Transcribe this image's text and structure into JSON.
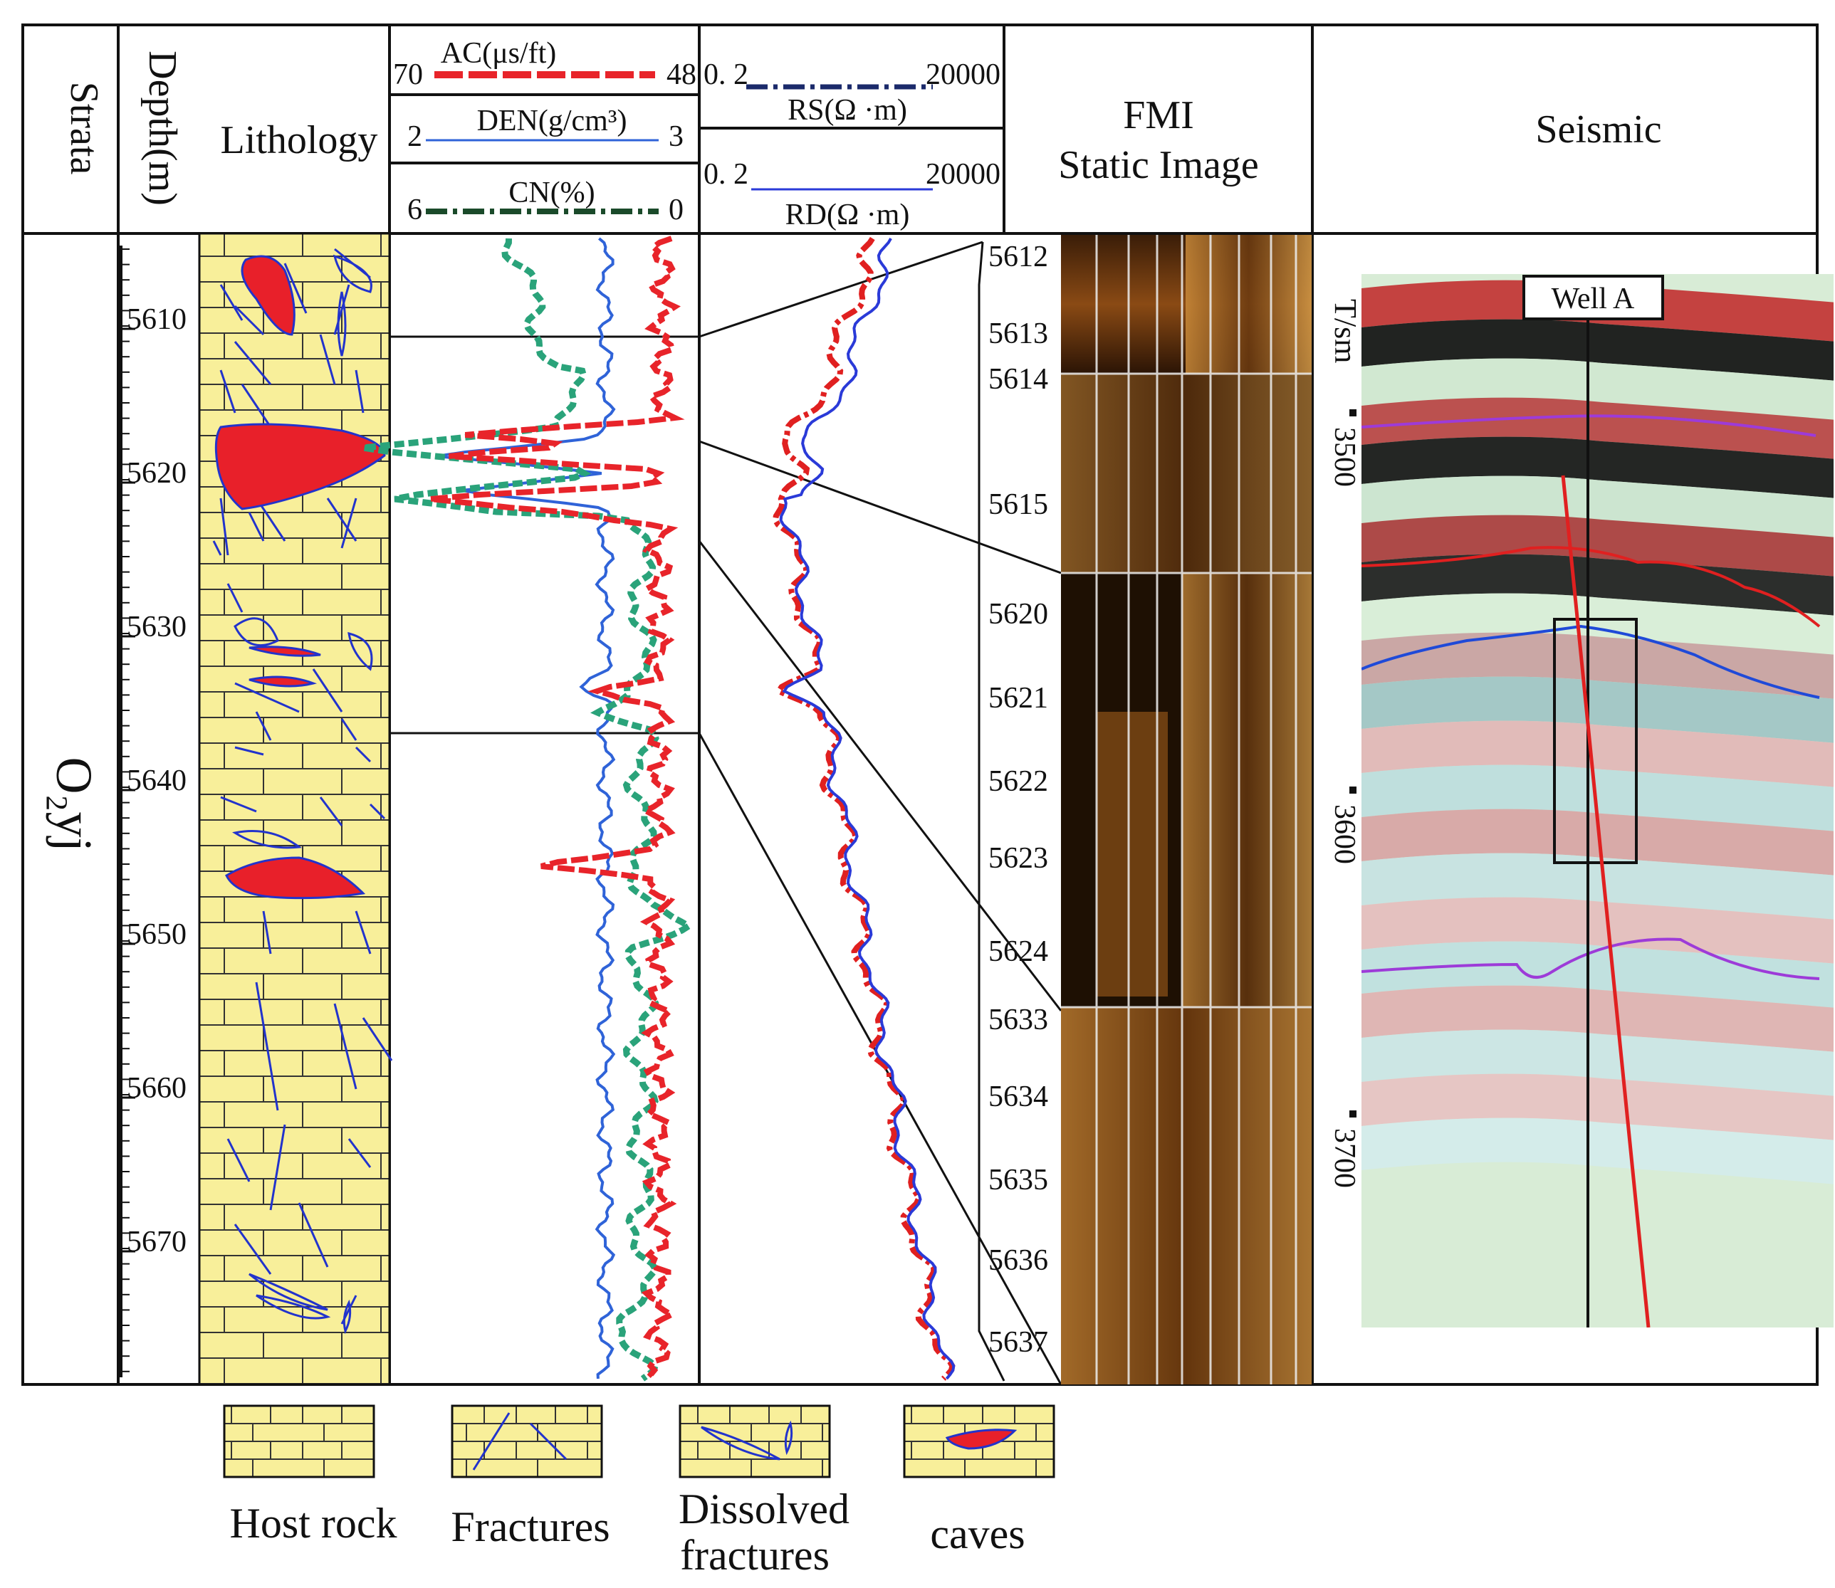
{
  "headers": {
    "strata": "Strata",
    "depth": "Depth(m)",
    "lithology": "Lithology",
    "fmi_line1": "FMI",
    "fmi_line2": "Static Image",
    "seismic": "Seismic"
  },
  "strata_name": "O₂yj",
  "logs": {
    "ac": {
      "label": "AC(μs/ft)",
      "min": "70",
      "max": "48",
      "color": "#e8242a"
    },
    "den": {
      "label": "DEN(g/cm³)",
      "min": "2",
      "max": "3",
      "color": "#2f63d8"
    },
    "cn": {
      "label": "CN(%)",
      "min": "6",
      "max": "0",
      "color": "#1e9a6e"
    },
    "rs": {
      "label": "RS(Ω ·m)",
      "min": "0. 2",
      "max": "20000",
      "color": "#1b2a6b"
    },
    "rd": {
      "label": "RD(Ω ·m)",
      "min": "0. 2",
      "max": "20000",
      "color": "#2a3ad8"
    }
  },
  "depth_ticks": [
    "5610",
    "5620",
    "5630",
    "5640",
    "5650",
    "5660",
    "5670"
  ],
  "fmi_ticks": [
    "5612",
    "5613",
    "5614",
    "5615",
    "5620",
    "5621",
    "5622",
    "5623",
    "5624",
    "5633",
    "5634",
    "5635",
    "5636",
    "5637"
  ],
  "seismic": {
    "axis_label": "T/sm",
    "time_ticks": [
      "3500",
      "3600",
      "3700"
    ],
    "well_label": "Well A"
  },
  "legend": [
    {
      "label": "Host rock",
      "icon": "host-rock"
    },
    {
      "label": "Fractures",
      "icon": "fractures"
    },
    {
      "label": "Dissolved fractures",
      "icon": "dissolved-fractures"
    },
    {
      "label": "caves",
      "icon": "caves"
    }
  ],
  "legend_lines": {
    "dissolved_1": "Dissolved",
    "dissolved_2": "fractures"
  }
}
